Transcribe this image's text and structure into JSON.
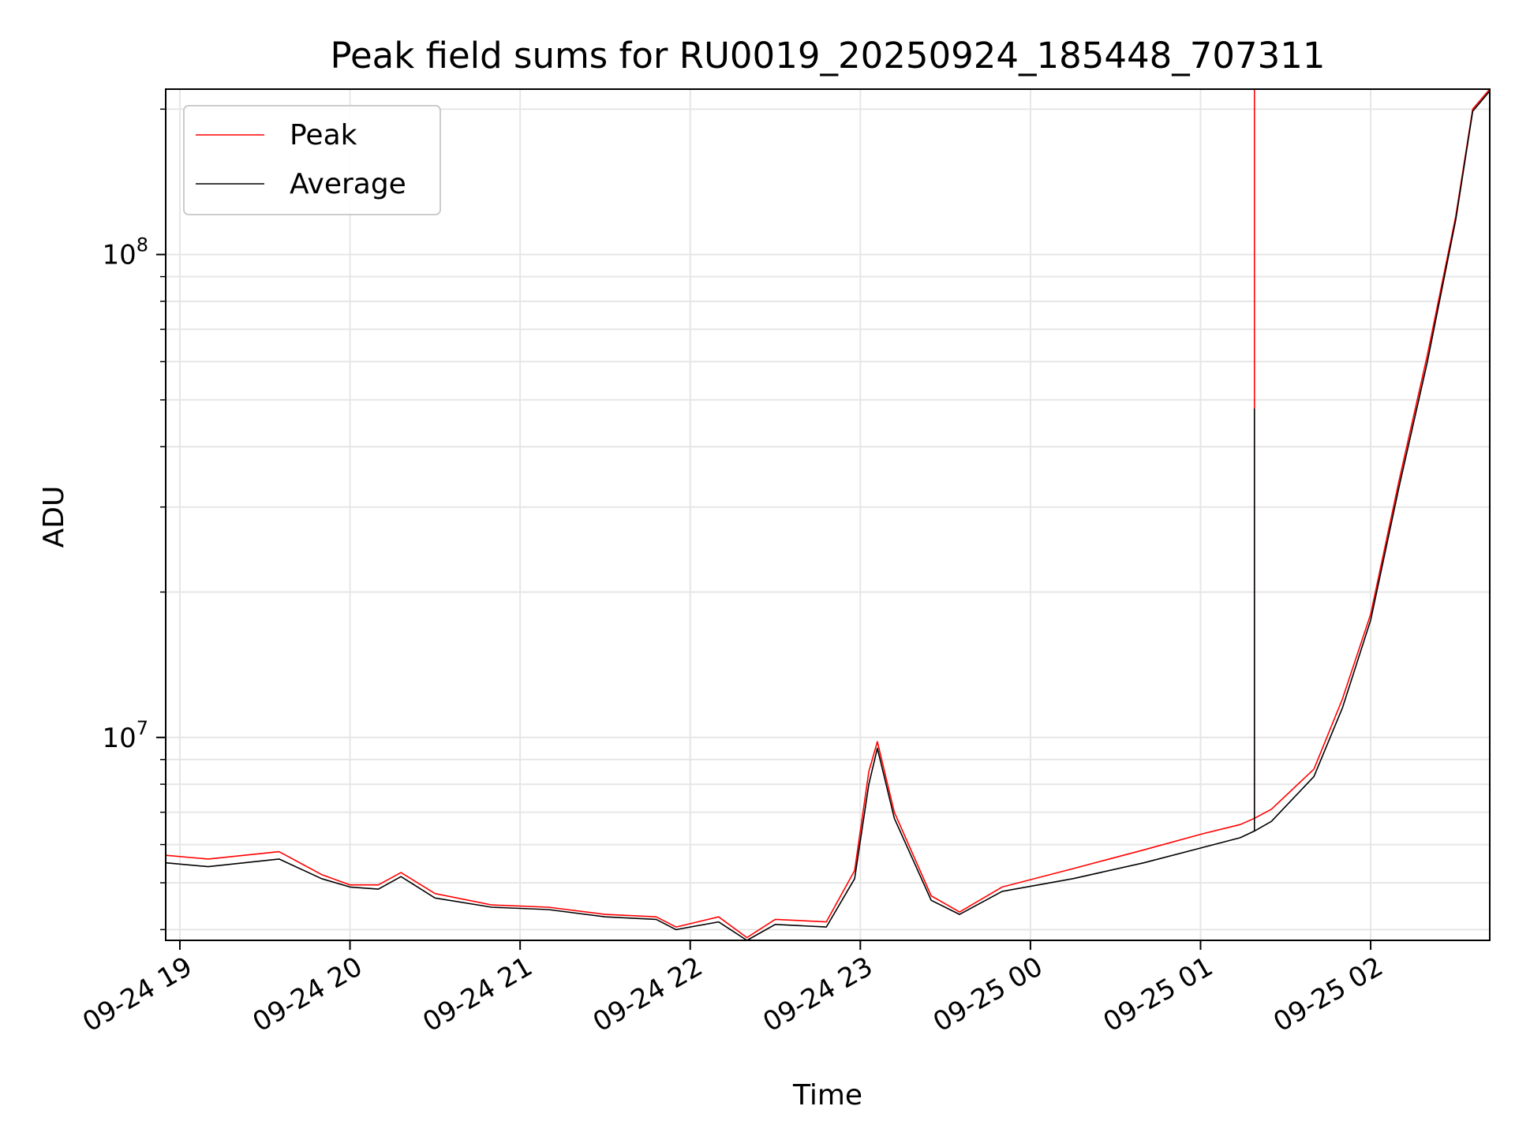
{
  "chart_data": {
    "type": "line",
    "title": "Peak field sums for RU0019_20250924_185448_707311",
    "xlabel": "Time",
    "ylabel": "ADU",
    "y_scale": "log",
    "ylim": [
      3800000,
      220000000
    ],
    "xlim": [
      "2025-09-24 18:55",
      "2025-09-25 02:42"
    ],
    "x_ticks": [
      {
        "value": "2025-09-24 19:00",
        "label": "09-24 19"
      },
      {
        "value": "2025-09-24 20:00",
        "label": "09-24 20"
      },
      {
        "value": "2025-09-24 21:00",
        "label": "09-24 21"
      },
      {
        "value": "2025-09-24 22:00",
        "label": "09-24 22"
      },
      {
        "value": "2025-09-24 23:00",
        "label": "09-24 23"
      },
      {
        "value": "2025-09-25 00:00",
        "label": "09-25 00"
      },
      {
        "value": "2025-09-25 01:00",
        "label": "09-25 01"
      },
      {
        "value": "2025-09-25 02:00",
        "label": "09-25 02"
      }
    ],
    "y_ticks": [
      {
        "value": 10000000,
        "base": "10",
        "exp": "7"
      },
      {
        "value": 100000000,
        "base": "10",
        "exp": "8"
      }
    ],
    "grid": true,
    "legend_position": "top-left",
    "series": [
      {
        "name": "Peak",
        "color": "#ff0000",
        "x": [
          "2025-09-24 18:55",
          "2025-09-24 19:10",
          "2025-09-24 19:35",
          "2025-09-24 19:50",
          "2025-09-24 20:00",
          "2025-09-24 20:10",
          "2025-09-24 20:18",
          "2025-09-24 20:30",
          "2025-09-24 20:50",
          "2025-09-24 21:10",
          "2025-09-24 21:30",
          "2025-09-24 21:48",
          "2025-09-24 21:55",
          "2025-09-24 22:10",
          "2025-09-24 22:20",
          "2025-09-24 22:30",
          "2025-09-24 22:48",
          "2025-09-24 22:58",
          "2025-09-24 23:03",
          "2025-09-24 23:06",
          "2025-09-24 23:12",
          "2025-09-24 23:25",
          "2025-09-24 23:35",
          "2025-09-24 23:50",
          "2025-09-25 00:15",
          "2025-09-25 00:40",
          "2025-09-25 01:00",
          "2025-09-25 01:14",
          "2025-09-25 01:19",
          "2025-09-25 01:25",
          "2025-09-25 01:40",
          "2025-09-25 01:50",
          "2025-09-25 02:00",
          "2025-09-25 02:10",
          "2025-09-25 02:20",
          "2025-09-25 02:30",
          "2025-09-25 02:36",
          "2025-09-25 02:42"
        ],
        "values": [
          5700000,
          5600000,
          5800000,
          5200000,
          4950000,
          4950000,
          5250000,
          4750000,
          4500000,
          4450000,
          4300000,
          4250000,
          4050000,
          4250000,
          3850000,
          4200000,
          4150000,
          5300000,
          8500000,
          9800000,
          7000000,
          4700000,
          4350000,
          4900000,
          5350000,
          5850000,
          6300000,
          6600000,
          6800000,
          7100000,
          8600000,
          12000000,
          18000000,
          34000000,
          62000000,
          120000000,
          200000000,
          220000000
        ]
      },
      {
        "name": "Average",
        "color": "#000000",
        "x": [
          "2025-09-24 18:55",
          "2025-09-24 19:10",
          "2025-09-24 19:35",
          "2025-09-24 19:50",
          "2025-09-24 20:00",
          "2025-09-24 20:10",
          "2025-09-24 20:18",
          "2025-09-24 20:30",
          "2025-09-24 20:50",
          "2025-09-24 21:10",
          "2025-09-24 21:30",
          "2025-09-24 21:48",
          "2025-09-24 21:55",
          "2025-09-24 22:10",
          "2025-09-24 22:20",
          "2025-09-24 22:30",
          "2025-09-24 22:48",
          "2025-09-24 22:58",
          "2025-09-24 23:03",
          "2025-09-24 23:06",
          "2025-09-24 23:12",
          "2025-09-24 23:25",
          "2025-09-24 23:35",
          "2025-09-24 23:50",
          "2025-09-25 00:15",
          "2025-09-25 00:40",
          "2025-09-25 01:00",
          "2025-09-25 01:14",
          "2025-09-25 01:19",
          "2025-09-25 01:25",
          "2025-09-25 01:40",
          "2025-09-25 01:50",
          "2025-09-25 02:00",
          "2025-09-25 02:10",
          "2025-09-25 02:20",
          "2025-09-25 02:30",
          "2025-09-25 02:36",
          "2025-09-25 02:42"
        ],
        "values": [
          5500000,
          5400000,
          5600000,
          5100000,
          4900000,
          4850000,
          5150000,
          4650000,
          4450000,
          4400000,
          4250000,
          4200000,
          4000000,
          4150000,
          3800000,
          4100000,
          4050000,
          5100000,
          8000000,
          9500000,
          6800000,
          4600000,
          4300000,
          4800000,
          5100000,
          5500000,
          5900000,
          6200000,
          6400000,
          6700000,
          8300000,
          11500000,
          17500000,
          33000000,
          60000000,
          118000000,
          198000000,
          218000000
        ]
      }
    ],
    "spikes": [
      {
        "series": "Peak",
        "x": "2025-09-25 01:19",
        "value": 220000000
      },
      {
        "series": "Average",
        "x": "2025-09-25 01:19",
        "value": 48000000
      }
    ]
  }
}
